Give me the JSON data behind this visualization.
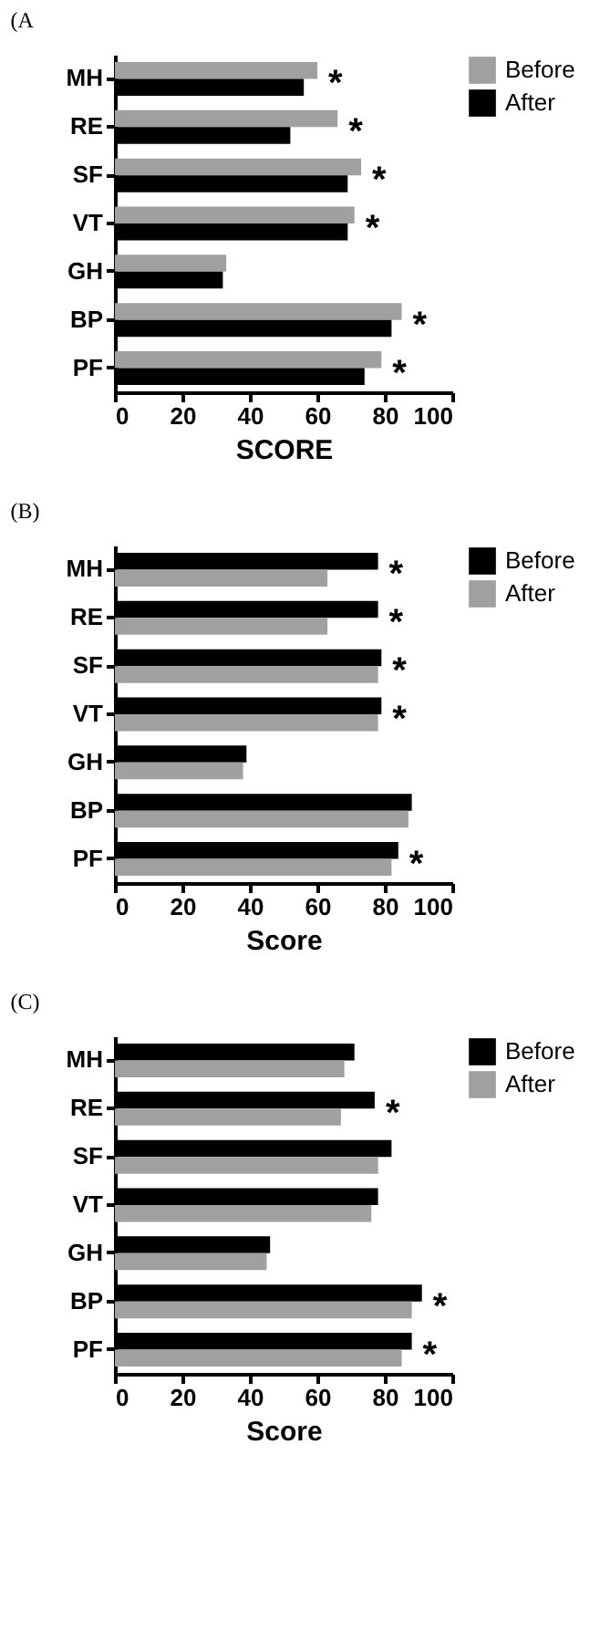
{
  "chart_data": [
    {
      "type": "bar",
      "orientation": "horizontal",
      "title": "(A",
      "xlabel": "SCORE",
      "categories": [
        "MH",
        "RE",
        "SF",
        "VT",
        "GH",
        "BP",
        "PF"
      ],
      "series": [
        {
          "name": "Before",
          "color": "#a0a0a0",
          "values": [
            60,
            66,
            73,
            71,
            33,
            85,
            79
          ]
        },
        {
          "name": "After",
          "color": "#000000",
          "values": [
            56,
            52,
            69,
            69,
            32,
            82,
            74
          ]
        }
      ],
      "xlim": [
        0,
        100
      ],
      "xticks": [
        0,
        20,
        40,
        60,
        80,
        100
      ],
      "grid": false,
      "legend": "top right",
      "annotations": [
        {
          "text": "*",
          "x": 60,
          "y": "MH"
        },
        {
          "text": "*",
          "x": 66,
          "y": "RE"
        },
        {
          "text": "*",
          "x": 73,
          "y": "SF"
        },
        {
          "text": "*",
          "x": 71,
          "y": "VT"
        },
        {
          "text": "*",
          "x": 85,
          "y": "BP"
        },
        {
          "text": "*",
          "x": 79,
          "y": "PF"
        }
      ]
    },
    {
      "type": "bar",
      "orientation": "horizontal",
      "title": "(B)",
      "xlabel": "Score",
      "categories": [
        "MH",
        "RE",
        "SF",
        "VT",
        "GH",
        "BP",
        "PF"
      ],
      "series": [
        {
          "name": "Before",
          "color": "#000000",
          "values": [
            78,
            78,
            79,
            79,
            39,
            88,
            84
          ]
        },
        {
          "name": "After",
          "color": "#a0a0a0",
          "values": [
            63,
            63,
            78,
            78,
            38,
            87,
            82
          ]
        }
      ],
      "xlim": [
        0,
        100
      ],
      "xticks": [
        0,
        20,
        40,
        60,
        80,
        100
      ],
      "grid": false,
      "legend": "top right",
      "annotations": [
        {
          "text": "*",
          "x": 78,
          "y": "MH"
        },
        {
          "text": "*",
          "x": 78,
          "y": "RE"
        },
        {
          "text": "*",
          "x": 79,
          "y": "SF"
        },
        {
          "text": "*",
          "x": 79,
          "y": "VT"
        },
        {
          "text": "*",
          "x": 84,
          "y": "PF"
        }
      ]
    },
    {
      "type": "bar",
      "orientation": "horizontal",
      "title": "(C)",
      "xlabel": "Score",
      "categories": [
        "MH",
        "RE",
        "SF",
        "VT",
        "GH",
        "BP",
        "PF"
      ],
      "series": [
        {
          "name": "Before",
          "color": "#000000",
          "values": [
            71,
            77,
            82,
            78,
            46,
            91,
            88
          ]
        },
        {
          "name": "After",
          "color": "#a0a0a0",
          "values": [
            68,
            67,
            78,
            76,
            45,
            88,
            85
          ]
        }
      ],
      "xlim": [
        0,
        100
      ],
      "xticks": [
        0,
        20,
        40,
        60,
        80,
        100
      ],
      "grid": false,
      "legend": "top right",
      "annotations": [
        {
          "text": "*",
          "x": 77,
          "y": "RE"
        },
        {
          "text": "*",
          "x": 91,
          "y": "BP"
        },
        {
          "text": "*",
          "x": 88,
          "y": "PF"
        }
      ]
    }
  ]
}
